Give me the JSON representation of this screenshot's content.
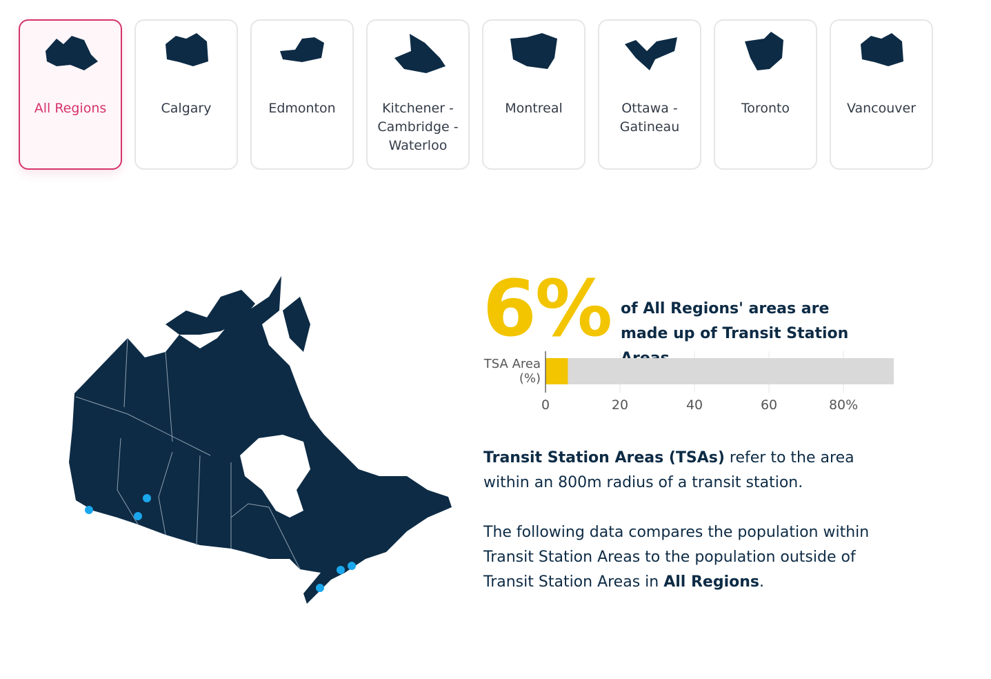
{
  "tabs": [
    {
      "label": "All Regions"
    },
    {
      "label": "Calgary"
    },
    {
      "label": "Edmonton"
    },
    {
      "label": "Kitchener - Cambridge - Waterloo"
    },
    {
      "label": "Montreal"
    },
    {
      "label": "Ottawa - Gatineau"
    },
    {
      "label": "Toronto"
    },
    {
      "label": "Vancouver"
    }
  ],
  "selected_tab": 0,
  "headline": {
    "label": "6%",
    "text": "of All Regions' areas are made up of Transit Station Areas."
  },
  "chart_data": {
    "type": "bar",
    "orientation": "horizontal",
    "categories": [
      "TSA Area (%)"
    ],
    "values": [
      6
    ],
    "color": "#f2c500",
    "track_color": "#d9d9d9",
    "xlim": [
      0,
      93.5
    ],
    "xticks": [
      0,
      20,
      40,
      60,
      {
        "value": 80,
        "label": "80%"
      }
    ],
    "grid": true
  },
  "paragraphs": [
    {
      "segments": [
        {
          "text": "Transit Station Areas (TSAs)",
          "bold": true
        },
        {
          "text": " refer to the area within an 800m radius of a transit station.",
          "bold": false
        }
      ]
    },
    {
      "segments": [
        {
          "text": "The following data compares the population within Transit Station Areas to the population outside of Transit Station Areas in ",
          "bold": false
        },
        {
          "text": "All Regions",
          "bold": true
        },
        {
          "text": ".",
          "bold": false
        }
      ]
    }
  ]
}
